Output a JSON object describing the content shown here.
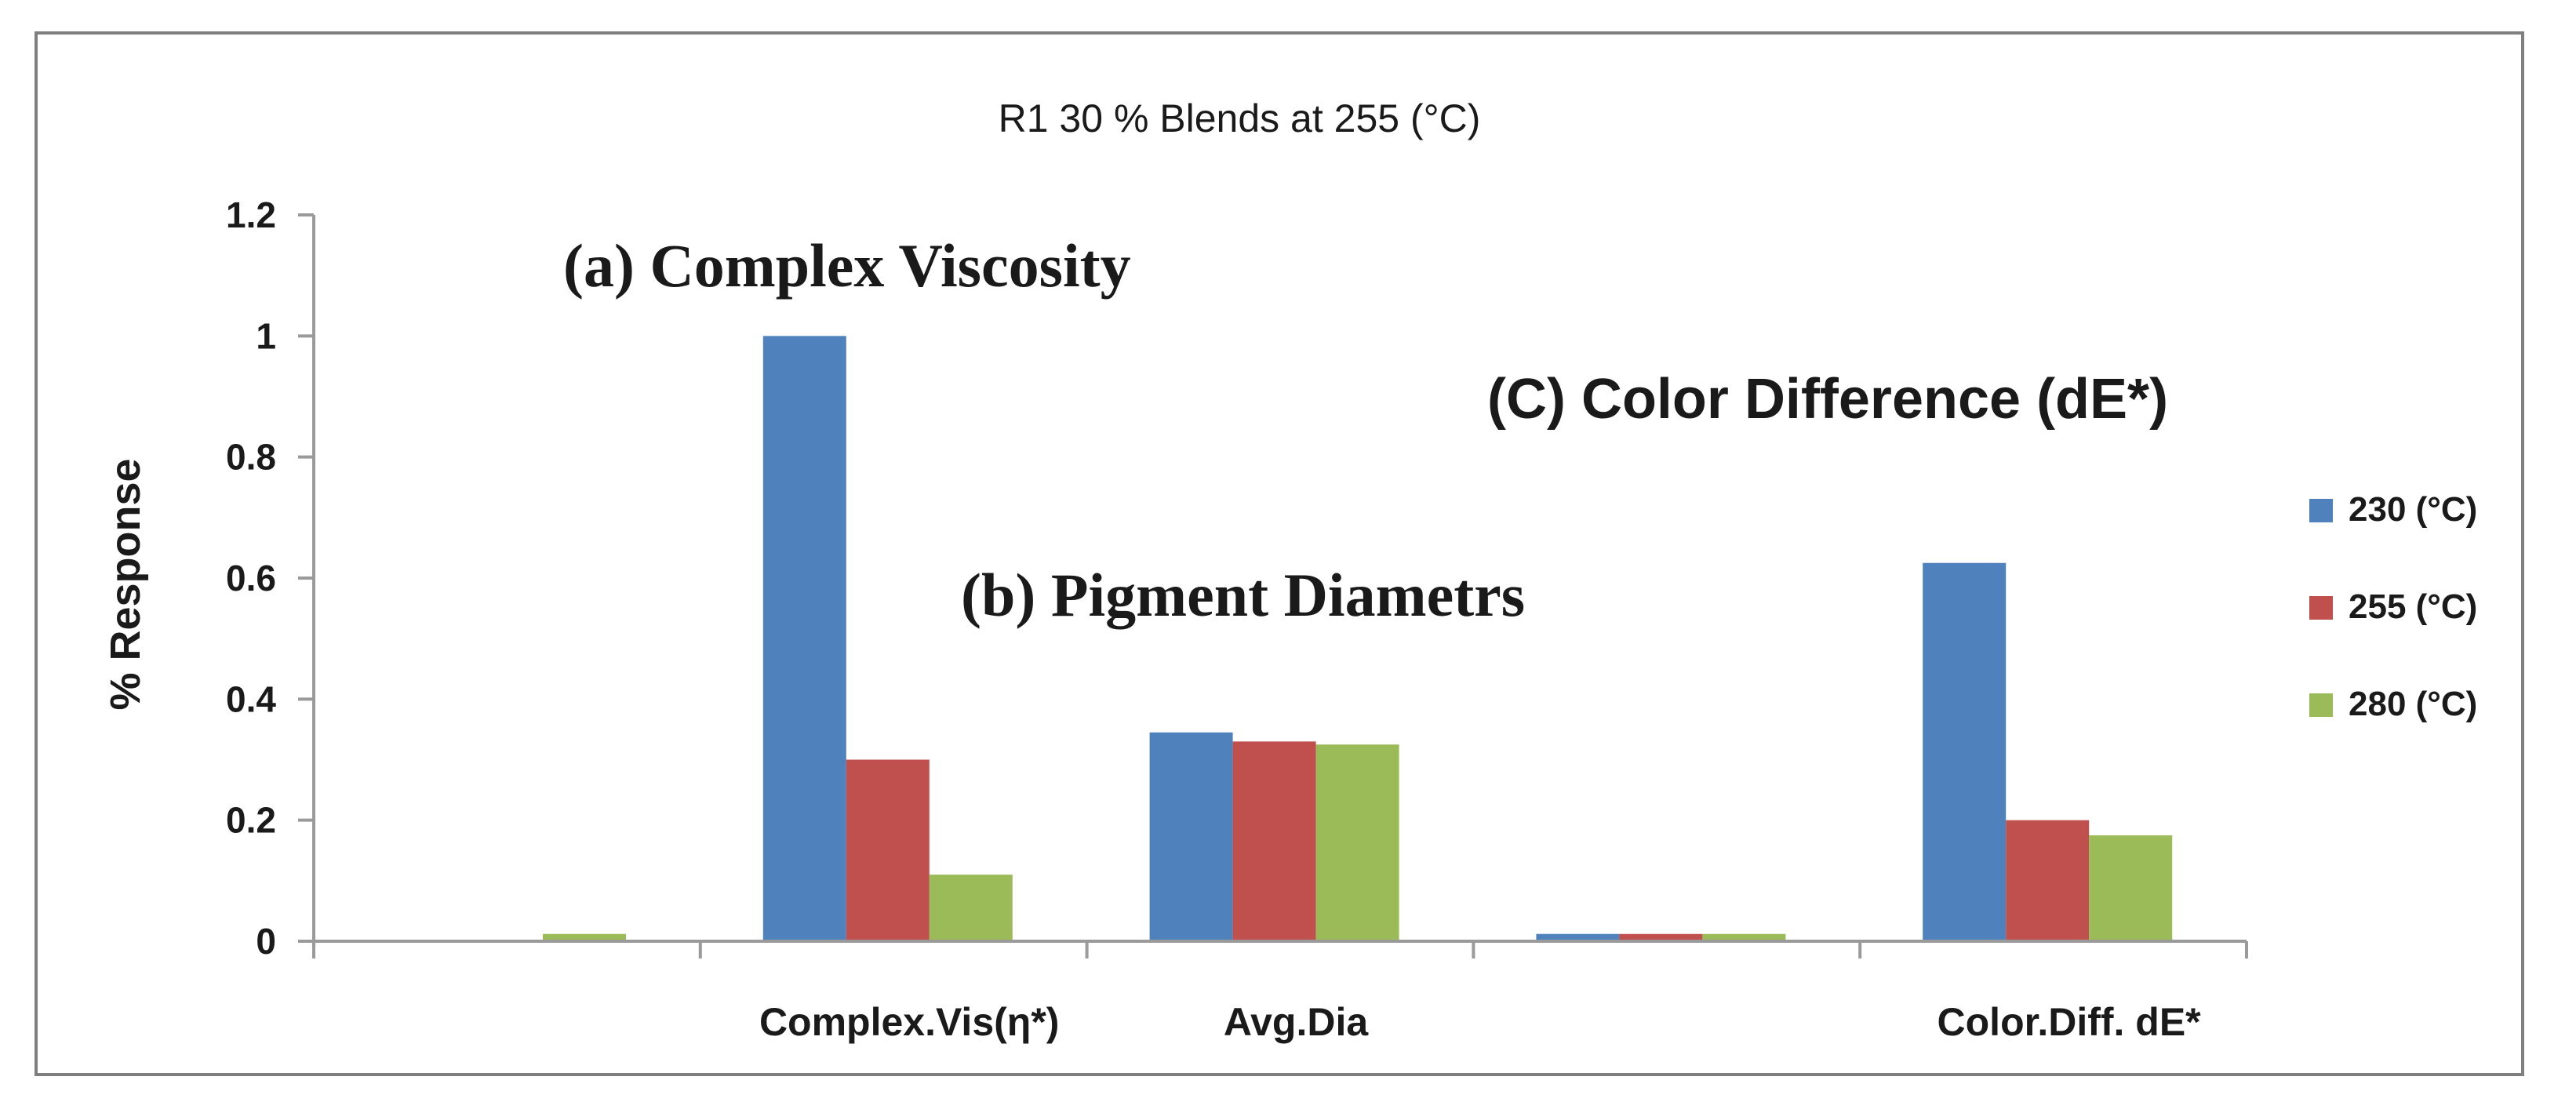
{
  "chart_data": {
    "type": "bar",
    "title": "R1 30 %  Blends at 255 (°C)",
    "xlabel": "",
    "ylabel": "% Response",
    "ylim": [
      0,
      1.2
    ],
    "yticks": [
      "0",
      "0.2",
      "0.4",
      "0.6",
      "0.8",
      "1",
      "1.2"
    ],
    "categories": [
      "",
      "Complex.Vis(η*)",
      "Avg.Dia",
      "",
      "Color.Diff. dE*"
    ],
    "series": [
      {
        "name": "230 (°C)",
        "color": "#4f81bd",
        "values": [
          0,
          1.0,
          0.345,
          0.012,
          0.625
        ]
      },
      {
        "name": "255 (°C)",
        "color": "#c0504d",
        "values": [
          0,
          0.3,
          0.33,
          0.012,
          0.2
        ]
      },
      {
        "name": "280 (°C)",
        "color": "#9bbb59",
        "values": [
          0.012,
          0.11,
          0.325,
          0.012,
          0.175
        ]
      }
    ],
    "legend_position": "right",
    "grid": false,
    "annotations": [
      {
        "label": "(a)  Complex Viscosity"
      },
      {
        "label": "(b) Pigment Diametrs"
      },
      {
        "label": "(C)  Color Difference  (dE*)"
      }
    ]
  }
}
